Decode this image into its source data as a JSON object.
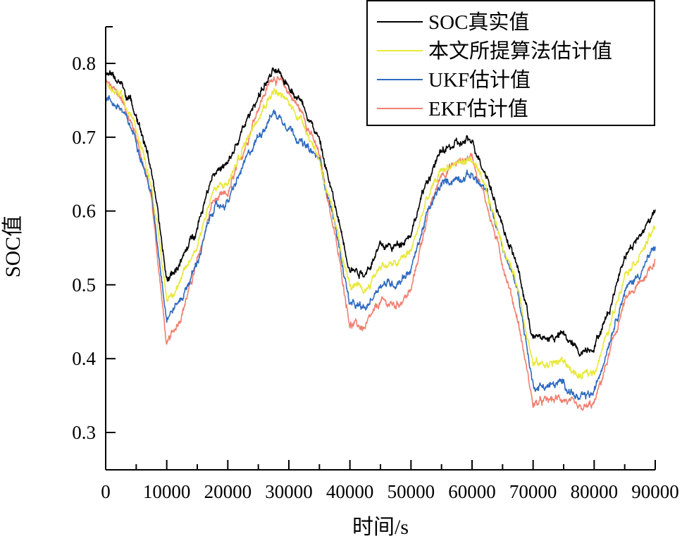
{
  "chart_data": {
    "type": "line",
    "title": "",
    "xlabel": "时间/s",
    "ylabel": "SOC值",
    "xlim": [
      0,
      90000
    ],
    "ylim": [
      0.25,
      0.85
    ],
    "xticks": [
      0,
      10000,
      20000,
      30000,
      40000,
      50000,
      60000,
      70000,
      80000,
      90000
    ],
    "xtick_labels": [
      "0",
      "10000",
      "20000",
      "30000",
      "40000",
      "50000",
      "60000",
      "70000",
      "80000",
      "90000"
    ],
    "yticks": [
      0.3,
      0.4,
      0.5,
      0.6,
      0.7,
      0.8
    ],
    "ytick_labels": [
      "0.3",
      "0.4",
      "0.5",
      "0.6",
      "0.7",
      "0.8"
    ],
    "grid": false,
    "legend_position": "top-right",
    "x": [
      0,
      2500,
      5000,
      7500,
      10000,
      12500,
      15000,
      17500,
      20000,
      22500,
      25000,
      27500,
      30000,
      32500,
      35000,
      37500,
      40000,
      42500,
      45000,
      47500,
      50000,
      52500,
      55000,
      57500,
      60000,
      62500,
      65000,
      67500,
      70000,
      72500,
      75000,
      77500,
      80000,
      82500,
      85000,
      87500,
      90000
    ],
    "series": [
      {
        "name": "SOC真实值",
        "color": "#000000",
        "values": [
          0.79,
          0.773,
          0.733,
          0.657,
          0.506,
          0.533,
          0.58,
          0.652,
          0.662,
          0.71,
          0.757,
          0.789,
          0.771,
          0.743,
          0.695,
          0.609,
          0.523,
          0.516,
          0.552,
          0.552,
          0.571,
          0.638,
          0.681,
          0.69,
          0.695,
          0.647,
          0.58,
          0.523,
          0.428,
          0.428,
          0.432,
          0.409,
          0.418,
          0.466,
          0.542,
          0.566,
          0.602
        ]
      },
      {
        "name": "本文所提算法估计值",
        "color": "#e8e83a",
        "values": [
          0.77,
          0.753,
          0.713,
          0.637,
          0.481,
          0.508,
          0.555,
          0.627,
          0.637,
          0.685,
          0.732,
          0.764,
          0.746,
          0.718,
          0.67,
          0.584,
          0.498,
          0.491,
          0.527,
          0.527,
          0.546,
          0.613,
          0.656,
          0.665,
          0.67,
          0.622,
          0.555,
          0.498,
          0.393,
          0.393,
          0.397,
          0.374,
          0.383,
          0.441,
          0.517,
          0.541,
          0.577
        ]
      },
      {
        "name": "UKF估计值",
        "color": "#2f6bc0",
        "values": [
          0.755,
          0.738,
          0.698,
          0.622,
          0.456,
          0.483,
          0.53,
          0.602,
          0.612,
          0.66,
          0.702,
          0.734,
          0.716,
          0.688,
          0.67,
          0.584,
          0.473,
          0.466,
          0.502,
          0.502,
          0.521,
          0.593,
          0.636,
          0.645,
          0.65,
          0.622,
          0.55,
          0.493,
          0.363,
          0.363,
          0.367,
          0.344,
          0.353,
          0.426,
          0.492,
          0.516,
          0.552
        ]
      },
      {
        "name": "EKF估计值",
        "color": "#f08070",
        "values": [
          0.775,
          0.753,
          0.703,
          0.617,
          0.416,
          0.463,
          0.53,
          0.612,
          0.622,
          0.68,
          0.742,
          0.784,
          0.761,
          0.728,
          0.675,
          0.569,
          0.448,
          0.441,
          0.477,
          0.472,
          0.491,
          0.588,
          0.651,
          0.665,
          0.675,
          0.607,
          0.53,
          0.453,
          0.338,
          0.343,
          0.347,
          0.329,
          0.338,
          0.406,
          0.477,
          0.501,
          0.535
        ]
      }
    ]
  }
}
